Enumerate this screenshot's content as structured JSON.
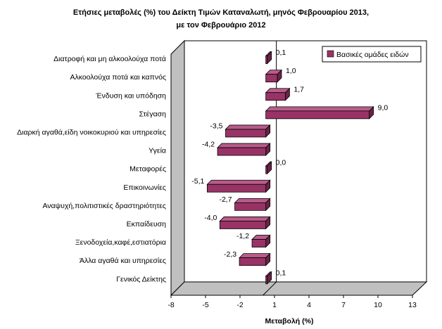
{
  "chart_data": {
    "type": "bar",
    "orientation": "horizontal",
    "style": "3d",
    "title_lines": [
      "Ετήσιες μεταβολές (%) του  Δείκτη Τιμών Καταναλωτή, μηνός Φεβρουαρίου 2013,",
      "με τον Φεβρουάριο 2012"
    ],
    "xlabel": "Μεταβολή (%)",
    "ylabel": "",
    "xlim": [
      -8,
      13
    ],
    "xticks": [
      -8,
      -5,
      -2,
      1,
      4,
      7,
      10,
      13
    ],
    "legend_position": "top-right",
    "series": [
      {
        "name": "Βασικές ομάδες ειδών",
        "color": "#993366",
        "values": [
          0.1,
          1.0,
          1.7,
          9.0,
          -3.5,
          -4.2,
          0.0,
          -5.1,
          -2.7,
          -4.0,
          -1.2,
          -2.3,
          0.1
        ]
      }
    ],
    "categories": [
      "Διατροφή και μη αλκοολούχα ποτά",
      "Αλκοολούχα ποτά και καπνός",
      "Ένδυση και υπόδηση",
      "Στέγαση",
      "Διαρκή αγαθά,είδη νοικοκυριού και υπηρεσίες",
      "Υγεία",
      "Μεταφορές",
      "Επικοινωνίες",
      "Αναψυχή,πολιτιστικές δραστηριότητες",
      "Εκπαίδευση",
      "Ξενοδοχεία,καφέ,εστιατόρια",
      "Άλλα αγαθά και υπηρεσίες",
      "Γενικός Δείκτης"
    ],
    "data_labels": [
      "0,1",
      "1,0",
      "1,7",
      "9,0",
      "-3,5",
      "-4,2",
      "0,0",
      "-5,1",
      "-2,7",
      "-4,0",
      "-1,2",
      "-2,3",
      "0,1"
    ],
    "tick_labels": [
      "-8",
      "-5",
      "-2",
      "1",
      "4",
      "7",
      "10",
      "13"
    ]
  }
}
